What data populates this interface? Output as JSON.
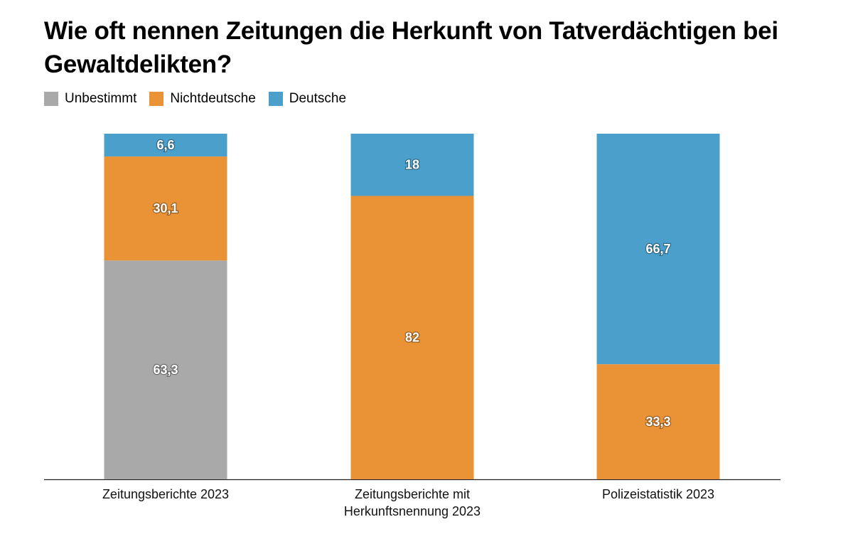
{
  "chart_data": {
    "type": "bar",
    "stacked": true,
    "title": "Wie oft nennen Zeitungen die Herkunft von Tatverdächtigen bei Gewaltdelikten?",
    "categories": [
      [
        "Zeitungsberichte 2023"
      ],
      [
        "Zeitungsberichte mit",
        "Herkunftsnennung 2023"
      ],
      [
        "Polizeistatistik 2023"
      ]
    ],
    "series": [
      {
        "name": "Unbestimmt",
        "color": "#a9a9a9",
        "values": [
          63.3,
          0,
          0
        ],
        "labels": [
          "63,3",
          "",
          ""
        ]
      },
      {
        "name": "Nichtdeutsche",
        "color": "#e99336",
        "values": [
          30.1,
          82,
          33.3
        ],
        "labels": [
          "30,1",
          "82",
          "33,3"
        ]
      },
      {
        "name": "Deutsche",
        "color": "#4aa0cb",
        "values": [
          6.6,
          18,
          66.7
        ],
        "labels": [
          "6,6",
          "18",
          "66,7"
        ]
      }
    ],
    "ylim": [
      0,
      100
    ],
    "xlabel": "",
    "ylabel": "",
    "grid": false,
    "legend_position": "top-left"
  }
}
